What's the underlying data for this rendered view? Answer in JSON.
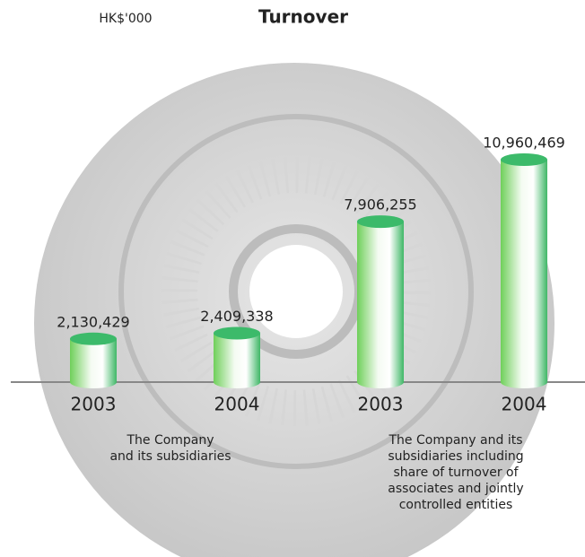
{
  "chart_data": {
    "type": "bar",
    "title": "Turnover",
    "unit": "HK$'000",
    "categories": [
      "2003",
      "2004",
      "2003",
      "2004"
    ],
    "values": [
      2130429,
      2409338,
      7906255,
      10960469
    ],
    "value_labels": [
      "2,130,429",
      "2,409,338",
      "7,906,255",
      "10,960,469"
    ],
    "color": "#3cba6a",
    "group_labels": [
      [
        "The Company",
        "and its subsidiaries"
      ],
      [
        "The Company and its",
        "subsidiaries including",
        "share of turnover of",
        "associates and jointly",
        "controlled entities"
      ]
    ]
  }
}
